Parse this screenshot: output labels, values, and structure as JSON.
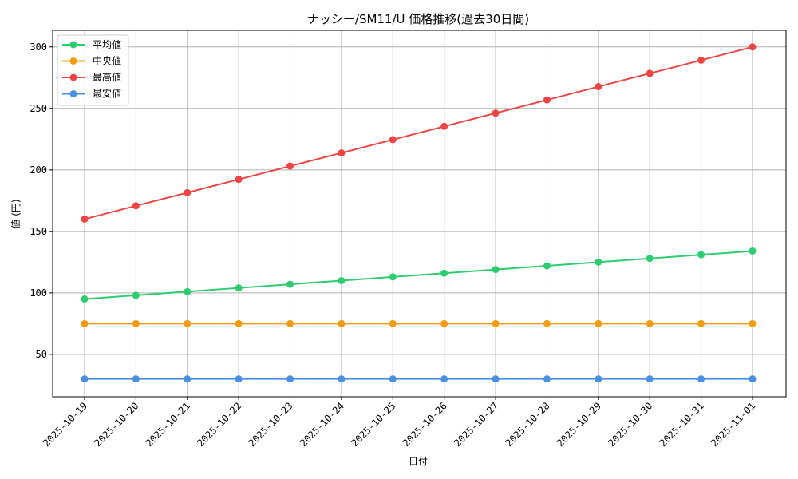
{
  "chart_data": {
    "type": "line",
    "title": "ナッシー/SM11/U 価格推移(過去30日間)",
    "xlabel": "日付",
    "ylabel": "値 (円)",
    "categories": [
      "2025-10-19",
      "2025-10-20",
      "2025-10-21",
      "2025-10-22",
      "2025-10-23",
      "2025-10-24",
      "2025-10-25",
      "2025-10-26",
      "2025-10-27",
      "2025-10-28",
      "2025-10-29",
      "2025-10-30",
      "2025-10-31",
      "2025-11-01"
    ],
    "yticks": [
      50,
      100,
      150,
      200,
      250,
      300
    ],
    "ylim": [
      15.5,
      313.5
    ],
    "grid": true,
    "legend_position": "top-left",
    "series": [
      {
        "name": "平均値",
        "color": "#2ecc71",
        "values": [
          95,
          98,
          101,
          104,
          107,
          110,
          113,
          116,
          119,
          122,
          125,
          128,
          131,
          134
        ]
      },
      {
        "name": "中央値",
        "color": "#f39c12",
        "values": [
          75,
          75,
          75,
          75,
          75,
          75,
          75,
          75,
          75,
          75,
          75,
          75,
          75,
          75
        ]
      },
      {
        "name": "最高値",
        "color": "#ef4444",
        "values": [
          160,
          170.8,
          181.5,
          192.3,
          203.1,
          213.8,
          224.6,
          235.4,
          246.2,
          256.9,
          267.7,
          278.5,
          289.2,
          300
        ]
      },
      {
        "name": "最安値",
        "color": "#4a90e2",
        "values": [
          30,
          30,
          30,
          30,
          30,
          30,
          30,
          30,
          30,
          30,
          30,
          30,
          30,
          30
        ]
      }
    ]
  }
}
